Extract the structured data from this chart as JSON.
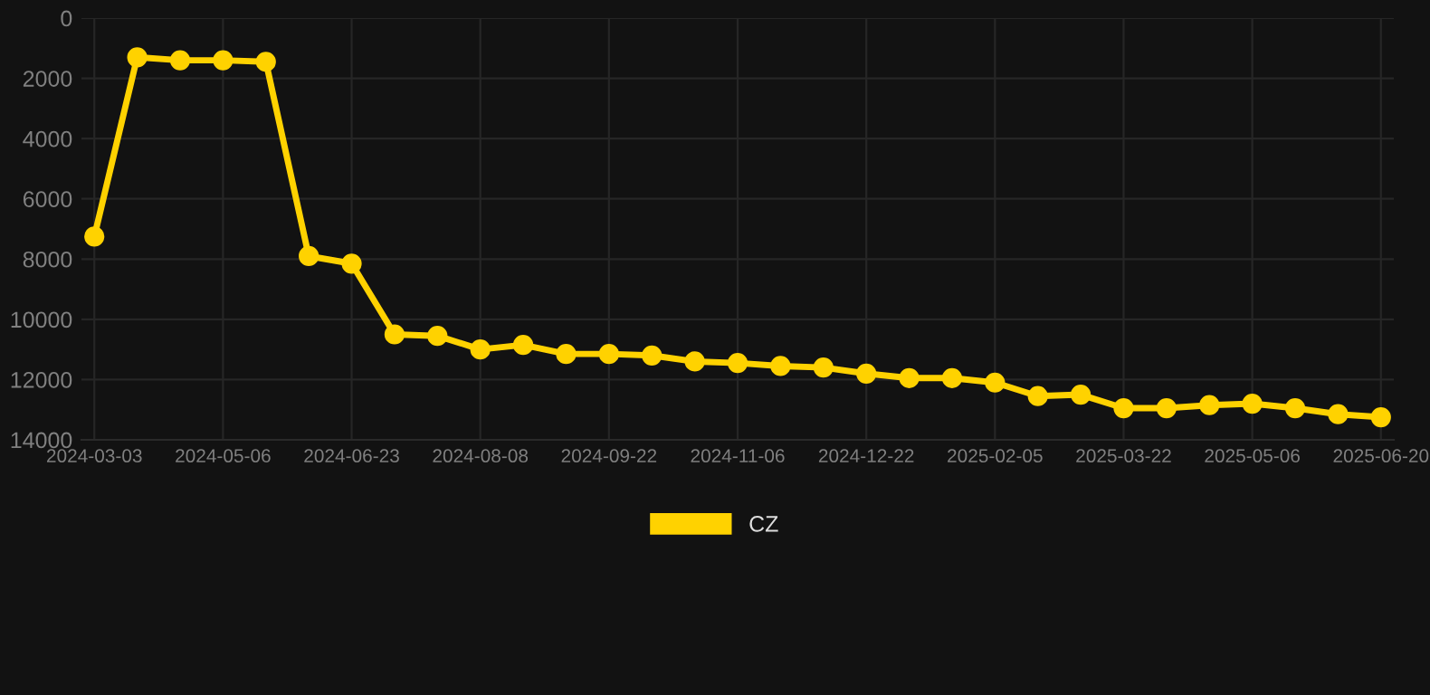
{
  "chart_data": {
    "type": "line",
    "categories": [
      "2024-03-03",
      null,
      null,
      "2024-05-06",
      null,
      null,
      "2024-06-23",
      null,
      null,
      "2024-08-08",
      null,
      null,
      "2024-09-22",
      null,
      null,
      "2024-11-06",
      null,
      null,
      "2024-12-22",
      null,
      null,
      "2025-02-05",
      null,
      null,
      "2025-03-22",
      null,
      null,
      "2025-05-06",
      null,
      null,
      "2025-06-20"
    ],
    "series": [
      {
        "name": "CZ",
        "color": "#ffd200",
        "values": [
          7250,
          1300,
          1400,
          1400,
          1450,
          7900,
          8150,
          10500,
          10550,
          11000,
          10850,
          11150,
          11150,
          11200,
          11400,
          11450,
          11550,
          11600,
          11800,
          11950,
          11950,
          12100,
          12550,
          12500,
          12950,
          12950,
          12850,
          12800,
          12950,
          13150,
          13250
        ]
      }
    ],
    "ylim": [
      14000,
      0
    ],
    "yticks": [
      0,
      2000,
      4000,
      6000,
      8000,
      10000,
      12000,
      14000
    ],
    "grid": true,
    "legend": "bottom",
    "marker": "circle",
    "line_style": "solid"
  }
}
